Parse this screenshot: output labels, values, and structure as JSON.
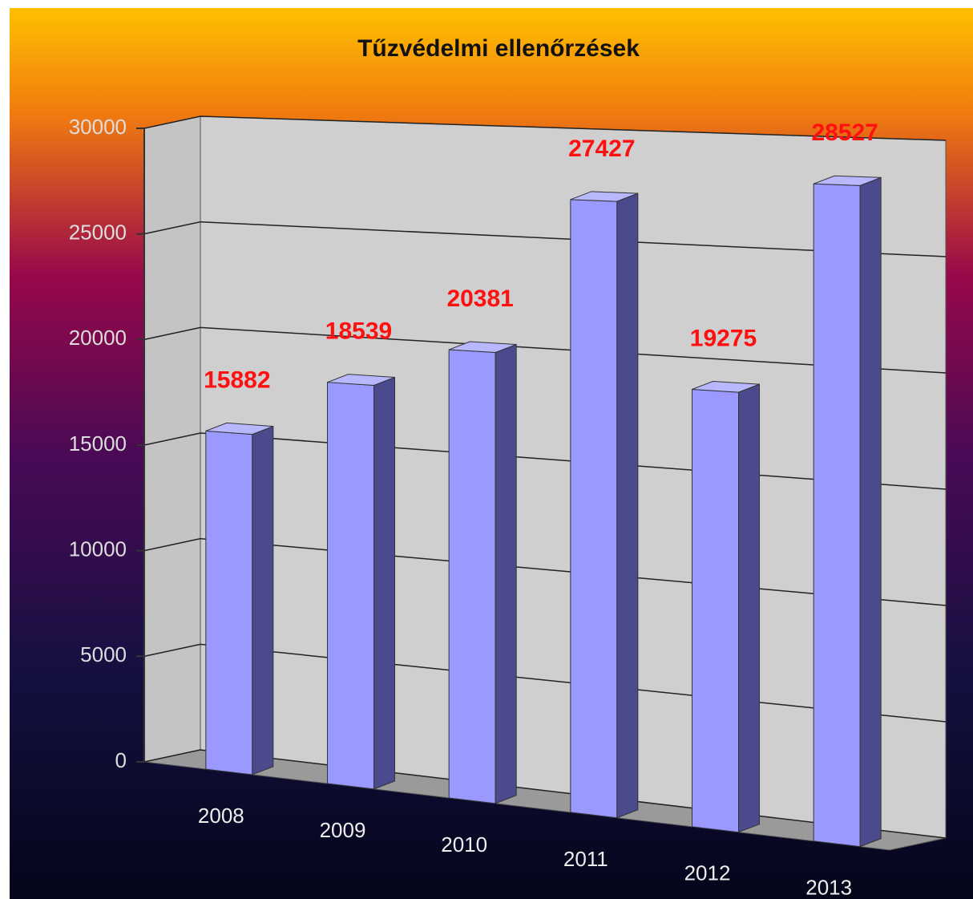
{
  "chart_data": {
    "type": "bar3d",
    "title": "Tűzvédelmi ellenőrzések",
    "categories": [
      "2008",
      "2009",
      "2010",
      "2011",
      "2012",
      "2013"
    ],
    "values": [
      15882,
      18539,
      20381,
      27427,
      19275,
      28527
    ],
    "color": "#9999ff",
    "ylim": [
      0,
      30000
    ],
    "yticks": [
      0,
      5000,
      10000,
      15000,
      20000,
      25000,
      30000
    ],
    "grid": true
  }
}
